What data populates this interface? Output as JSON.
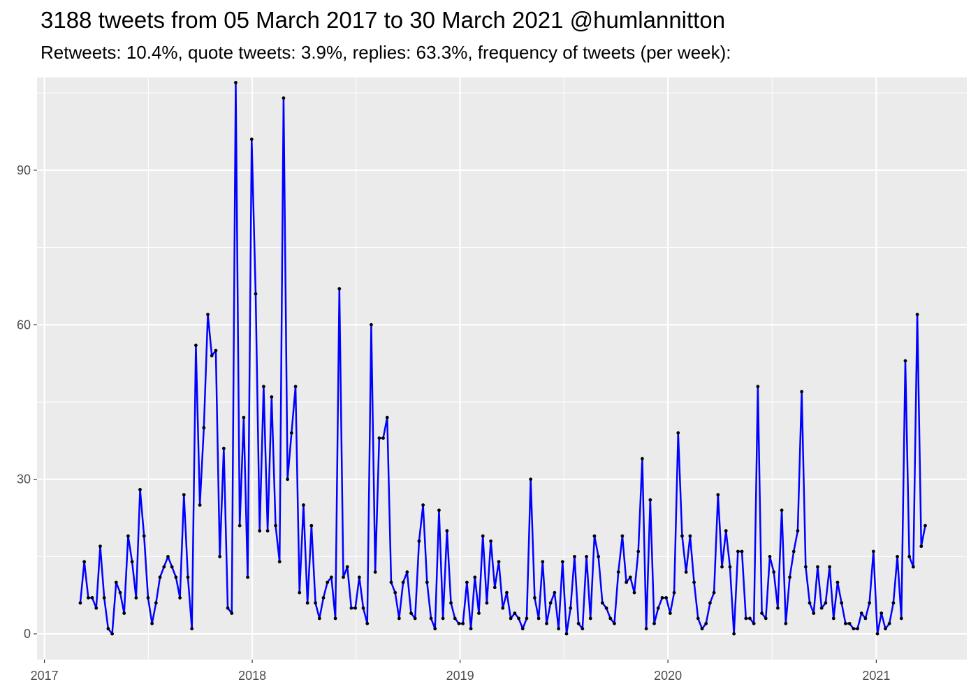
{
  "chart_data": {
    "type": "line",
    "title": "3188 tweets from 05 March 2017 to 30 March 2021 @humlannitton",
    "subtitle": "Retweets: 10.4%, quote tweets: 3.9%, replies: 63.3%, frequency of tweets (per week):",
    "xlabel": "",
    "ylabel": "",
    "x_axis": {
      "kind": "date",
      "range": [
        "2016-12-19",
        "2021-06-09"
      ],
      "ticks": [
        "2017",
        "2018",
        "2019",
        "2020",
        "2021"
      ],
      "tick_dates": [
        "2017-01-01",
        "2018-01-01",
        "2019-01-01",
        "2020-01-01",
        "2021-01-01"
      ]
    },
    "y_axis": {
      "range": [
        -5,
        108
      ],
      "ticks": [
        "0",
        "30",
        "60",
        "90"
      ],
      "tick_values": [
        0,
        30,
        60,
        90
      ]
    },
    "grid": true,
    "line_color": "#0000ff",
    "point_color": "#000000",
    "panel_color": "#ebebeb",
    "series": [
      {
        "first_week": "2017-03-05",
        "interval_days": 7,
        "values": [
          6,
          14,
          7,
          7,
          5,
          17,
          7,
          1,
          0,
          10,
          8,
          4,
          19,
          14,
          7,
          28,
          19,
          7,
          2,
          6,
          11,
          13,
          15,
          13,
          11,
          7,
          27,
          11,
          1,
          56,
          25,
          40,
          62,
          54,
          55,
          15,
          36,
          5,
          4,
          107,
          21,
          42,
          11,
          96,
          66,
          20,
          48,
          20,
          46,
          21,
          14,
          104,
          30,
          39,
          48,
          8,
          25,
          6,
          21,
          6,
          3,
          7,
          10,
          11,
          3,
          67,
          11,
          13,
          5,
          5,
          11,
          5,
          2,
          60,
          12,
          38,
          38,
          42,
          10,
          8,
          3,
          10,
          12,
          4,
          3,
          18,
          25,
          10,
          3,
          1,
          24,
          3,
          20,
          6,
          3,
          2,
          2,
          10,
          1,
          11,
          4,
          19,
          6,
          18,
          9,
          14,
          5,
          8,
          3,
          4,
          3,
          1,
          3,
          30,
          7,
          3,
          14,
          2,
          6,
          8,
          1,
          14,
          0,
          5,
          15,
          2,
          1,
          15,
          3,
          19,
          15,
          6,
          5,
          3,
          2,
          12,
          19,
          10,
          11,
          8,
          16,
          34,
          1,
          26,
          2,
          5,
          7,
          7,
          4,
          8,
          39,
          19,
          12,
          19,
          10,
          3,
          1,
          2,
          6,
          8,
          27,
          13,
          20,
          13,
          0,
          16,
          16,
          3,
          3,
          2,
          48,
          4,
          3,
          15,
          12,
          5,
          24,
          2,
          11,
          16,
          20,
          47,
          13,
          6,
          4,
          13,
          5,
          6,
          13,
          3,
          10,
          6,
          2,
          2,
          1,
          1,
          4,
          3,
          6,
          16,
          0,
          4,
          1,
          2,
          6,
          15,
          3,
          53,
          15,
          13,
          62,
          17,
          21
        ]
      }
    ]
  }
}
